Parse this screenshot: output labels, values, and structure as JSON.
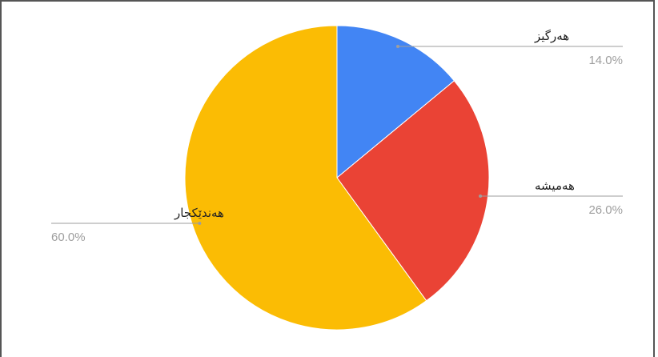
{
  "chart_data": {
    "type": "pie",
    "categories": [
      "هەرگیز",
      "هەمیشە",
      "هەندێکجار"
    ],
    "values": [
      14.0,
      26.0,
      60.0
    ],
    "value_labels": [
      "14.0%",
      "26.0%",
      "60.0%"
    ],
    "colors": [
      "#4285f4",
      "#ea4335",
      "#fbbc04"
    ],
    "start_angle": "12 o'clock",
    "direction": "clockwise",
    "legend": "none (callout labels)"
  }
}
